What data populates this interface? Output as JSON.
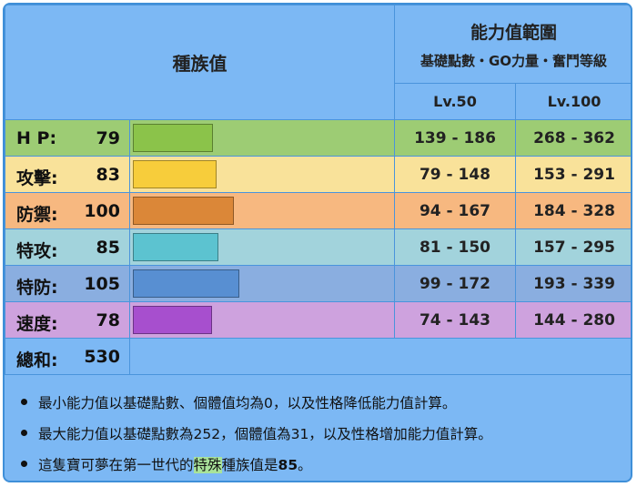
{
  "header": {
    "base_stats_title": "種族值",
    "range_title": "能力值範圍",
    "range_subtitle": "基礎點數・GO力量・奮鬥等級",
    "lv50_label": "Lv.50",
    "lv100_label": "Lv.100"
  },
  "max_stat_scale": 255,
  "stats": [
    {
      "name": "H P:",
      "value": 79,
      "lv50": "139 - 186",
      "lv100": "268 - 362",
      "row_color": "#9dcc74",
      "bar_color": "#8bc34a"
    },
    {
      "name": "攻擊:",
      "value": 83,
      "lv50": "79 - 148",
      "lv100": "153 - 291",
      "row_color": "#f9e29a",
      "bar_color": "#f7cd3b"
    },
    {
      "name": "防禦:",
      "value": 100,
      "lv50": "94 - 167",
      "lv100": "184 - 328",
      "row_color": "#f7b880",
      "bar_color": "#db8738"
    },
    {
      "name": "特攻:",
      "value": 85,
      "lv50": "81 - 150",
      "lv100": "157 - 295",
      "row_color": "#a2d3dc",
      "bar_color": "#5cc3d0"
    },
    {
      "name": "特防:",
      "value": 105,
      "lv50": "99 - 172",
      "lv100": "193 - 339",
      "row_color": "#8aaee0",
      "bar_color": "#588fd2"
    },
    {
      "name": "速度:",
      "value": 78,
      "lv50": "74 - 143",
      "lv100": "144 - 280",
      "row_color": "#cea2de",
      "bar_color": "#a74fce"
    }
  ],
  "total": {
    "name": "總和:",
    "value": 530
  },
  "notes": {
    "min": "最小能力值以基礎點數、個體值均為0，以及性格降低能力值計算。",
    "max": "最大能力值以基礎點數為252，個體值為31，以及性格增加能力值計算。",
    "gen1_prefix": "這隻寶可夢在第一世代的",
    "gen1_highlight": "特殊",
    "gen1_middle": "種族值是",
    "gen1_value": "85",
    "gen1_suffix": "。"
  }
}
